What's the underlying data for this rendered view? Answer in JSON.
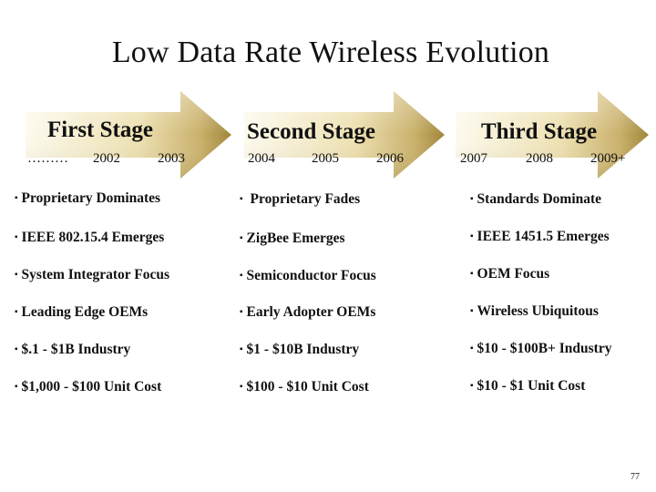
{
  "title": "Low Data Rate Wireless Evolution",
  "stages": [
    {
      "title": "First Stage",
      "years": [
        "………",
        "2002",
        "2003"
      ],
      "bullets": [
        "Proprietary Dominates",
        "IEEE 802.15.4 Emerges",
        "System Integrator Focus",
        "Leading Edge OEMs",
        "$.1 - $1B Industry",
        "$1,000 - $100 Unit Cost"
      ]
    },
    {
      "title": "Second Stage",
      "years": [
        "2004",
        "2005",
        "2006"
      ],
      "bullets": [
        "Proprietary Fades",
        "ZigBee Emerges",
        "Semiconductor Focus",
        "Early Adopter OEMs",
        "$1 - $10B Industry",
        "$100 - $10 Unit Cost"
      ]
    },
    {
      "title": "Third Stage",
      "years": [
        "2007",
        "2008",
        "2009+"
      ],
      "bullets": [
        "Standards Dominate",
        "IEEE 1451.5 Emerges",
        "OEM Focus",
        "Wireless Ubiquitous",
        "$10 - $100B+ Industry",
        "$10 - $1 Unit Cost"
      ]
    }
  ],
  "bullet_marker": "▪",
  "page_number": "77",
  "colors": {
    "arrow_fill_light": "#f7f0d6",
    "arrow_fill_dark": "#a8903e",
    "text": "#111111"
  }
}
